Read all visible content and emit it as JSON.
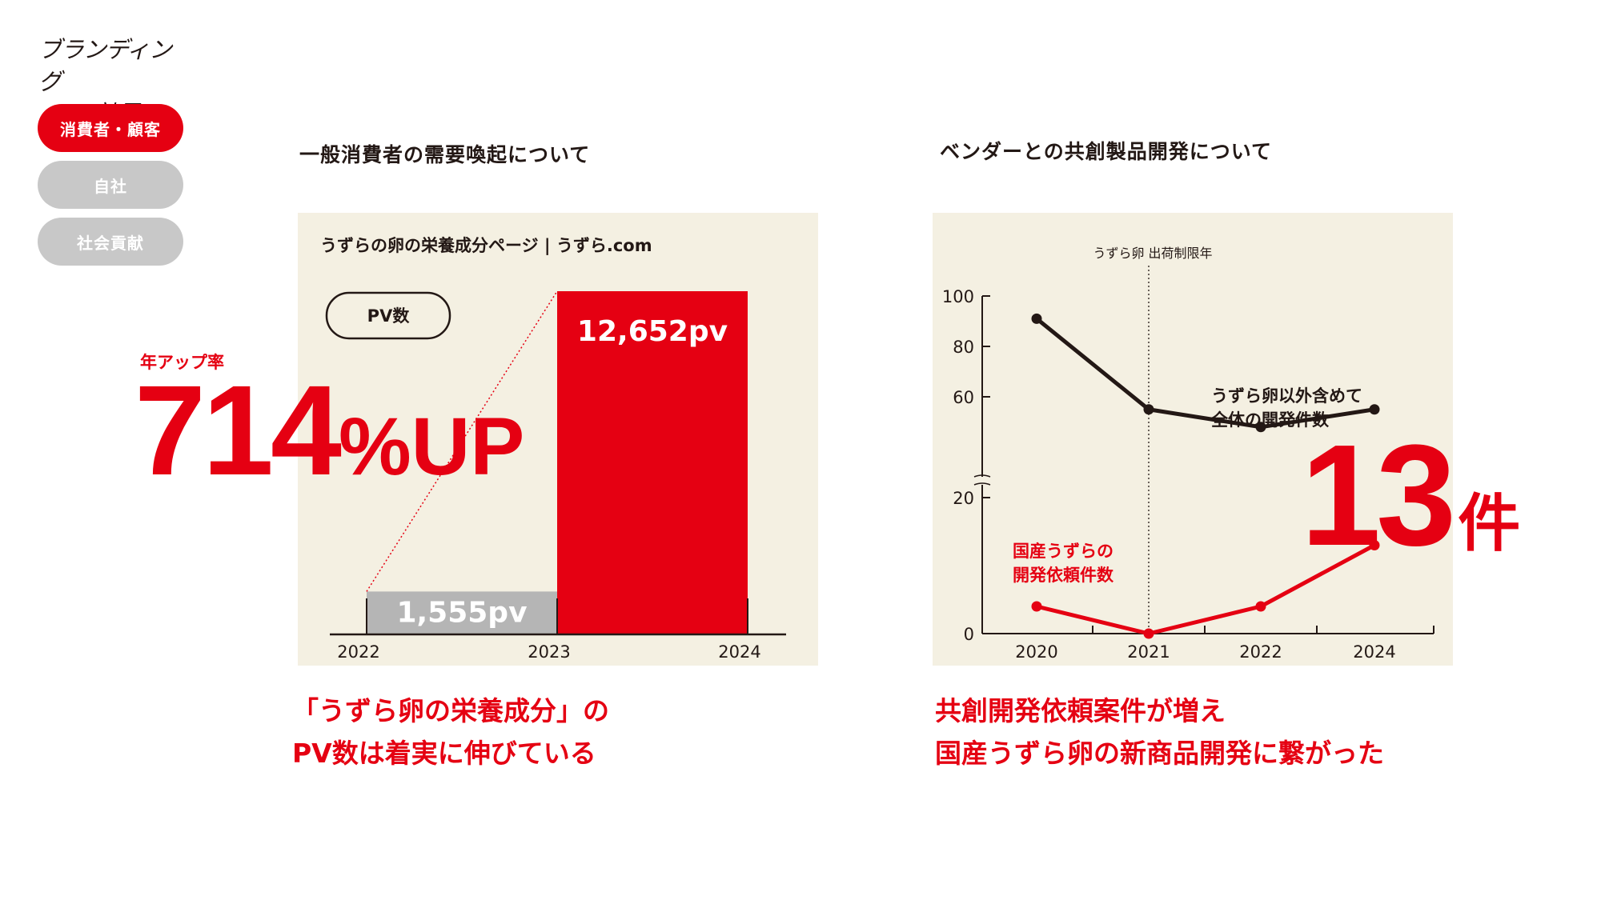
{
  "logo": {
    "line1": "ブランディング",
    "line2": "の効果"
  },
  "nav": {
    "items": [
      {
        "label": "消費者・顧客",
        "active": true
      },
      {
        "label": "自社",
        "active": false
      },
      {
        "label": "社会貢献",
        "active": false
      }
    ]
  },
  "left": {
    "section_title": "一般消費者の需要喚起について",
    "caption_line1": "「うずら卵の栄養成分」の",
    "caption_line2": "PV数は着実に伸びている",
    "rate_label": "年アップ率",
    "rate_value": "714",
    "rate_suffix": "%UP"
  },
  "right": {
    "section_title": "ベンダーとの共創製品開発について",
    "caption_line1": "共創開発依頼案件が増え",
    "caption_line2": "国産うずら卵の新商品開発に繋がった",
    "count_value": "13",
    "count_suffix": "件"
  },
  "colors": {
    "accent": "#e50012",
    "gray": "#b5b5b5",
    "panel": "#f4f0e2",
    "dark": "#231815"
  },
  "chart_data": [
    {
      "type": "bar",
      "title": "うずらの卵の栄養成分ページ | うずら.com",
      "badge": "PV数",
      "x_ticks": [
        "2022",
        "2023",
        "2024"
      ],
      "categories": [
        "2022",
        "2023"
      ],
      "values": [
        1555,
        12652
      ],
      "value_labels": [
        "1,555pv",
        "12,652pv"
      ],
      "ylim": [
        0,
        12652
      ],
      "grid": false
    },
    {
      "type": "line",
      "x": [
        "2020",
        "2021",
        "2022",
        "2024"
      ],
      "y_ticks": [
        "100",
        "80",
        "60",
        "20",
        "0"
      ],
      "ylim": [
        0,
        100
      ],
      "axis_break": true,
      "annotation": {
        "x": "2021",
        "label": "うずら卵 出荷制限年"
      },
      "series": [
        {
          "name": "うずら卵以外含めて全体の開発件数",
          "name_line1": "うずら卵以外含めて",
          "name_line2": "全体の開発件数",
          "color": "#231815",
          "values": [
            91,
            55,
            48,
            55
          ]
        },
        {
          "name": "国産うずらの開発依頼件数",
          "name_line1": "国産うずらの",
          "name_line2": "開発依頼件数",
          "color": "#e50012",
          "values": [
            4,
            0,
            4,
            13
          ]
        }
      ],
      "grid": false
    }
  ]
}
